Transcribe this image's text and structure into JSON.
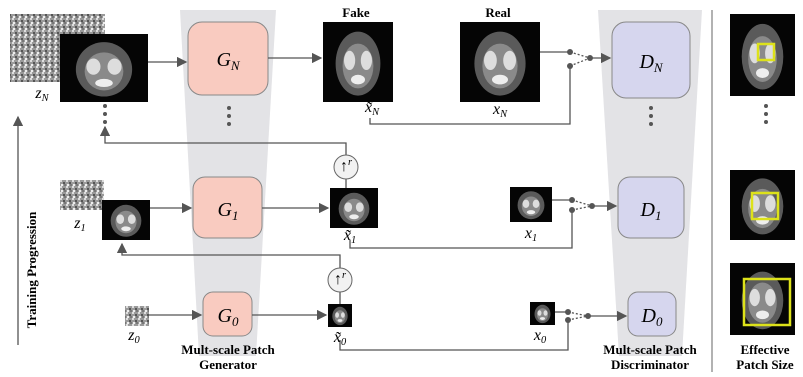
{
  "headers": {
    "fake": "Fake",
    "real": "Real"
  },
  "generators": [
    {
      "base": "G",
      "sub": "N"
    },
    {
      "base": "G",
      "sub": "1"
    },
    {
      "base": "G",
      "sub": "0"
    }
  ],
  "discriminators": [
    {
      "base": "D",
      "sub": "N"
    },
    {
      "base": "D",
      "sub": "1"
    },
    {
      "base": "D",
      "sub": "0"
    }
  ],
  "noises": [
    {
      "base": "z",
      "sub": "N"
    },
    {
      "base": "z",
      "sub": "1"
    },
    {
      "base": "z",
      "sub": "0"
    }
  ],
  "fakes": [
    {
      "base": "x̃",
      "sub": "N"
    },
    {
      "base": "x̃",
      "sub": "1"
    },
    {
      "base": "x̃",
      "sub": "0"
    }
  ],
  "reals": [
    {
      "base": "x",
      "sub": "N"
    },
    {
      "base": "x",
      "sub": "1"
    },
    {
      "base": "x",
      "sub": "0"
    }
  ],
  "upsample": [
    {
      "base": "↑",
      "sup": "r"
    },
    {
      "base": "↑",
      "sup": "r"
    }
  ],
  "generator_caption": [
    "Mult-scale Patch",
    "Generator"
  ],
  "discriminator_caption": [
    "Mult-scale Patch",
    "Discriminator"
  ],
  "side_label": "Training Progression",
  "effective_caption": [
    "Effective",
    "Patch Size"
  ]
}
